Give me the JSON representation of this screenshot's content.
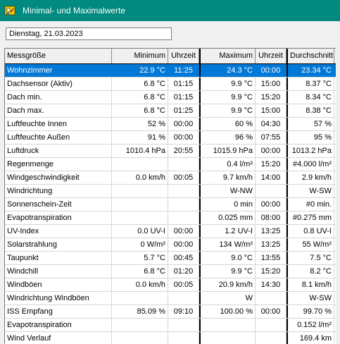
{
  "window": {
    "title": "Minimal- und Maximalwerte",
    "icon": "app-icon"
  },
  "date_field": {
    "value": "Dienstag, 21.03.2023"
  },
  "table": {
    "headers": {
      "name": "Messgröße",
      "min": "Minimum",
      "min_time": "Uhrzeit",
      "max": "Maximum",
      "max_time": "Uhrzeit",
      "avg": "Durchschnitt"
    },
    "selected_row": 0,
    "colors": {
      "selection": "#0078d7",
      "title_bar": "#008a80"
    },
    "rows": [
      {
        "name": "Wohnzimmer",
        "min": "22.9 °C",
        "min_time": "11:25",
        "max": "24.3 °C",
        "max_time": "00:00",
        "avg": "23.34 °C"
      },
      {
        "name": "Dachsensor (Aktiv)",
        "min": "6.8 °C",
        "min_time": "01:15",
        "max": "9.9 °C",
        "max_time": "15:00",
        "avg": "8.37 °C"
      },
      {
        "name": "Dach min.",
        "min": "6.8 °C",
        "min_time": "01:15",
        "max": "9.9 °C",
        "max_time": "15:20",
        "avg": "8.34 °C"
      },
      {
        "name": "Dach max.",
        "min": "6.8 °C",
        "min_time": "01:25",
        "max": "9.9 °C",
        "max_time": "15:00",
        "avg": "8.38 °C"
      },
      {
        "name": "Luftfeuchte Innen",
        "min": "52 %",
        "min_time": "00:00",
        "max": "60 %",
        "max_time": "04:30",
        "avg": "57 %"
      },
      {
        "name": "Luftfeuchte Außen",
        "min": "91 %",
        "min_time": "00:00",
        "max": "96 %",
        "max_time": "07:55",
        "avg": "95 %"
      },
      {
        "name": "Luftdruck",
        "min": "1010.4 hPa",
        "min_time": "20:55",
        "max": "1015.9 hPa",
        "max_time": "00:00",
        "avg": "1013.2 hPa"
      },
      {
        "name": "Regenmenge",
        "min": "",
        "min_time": "",
        "max": "0.4 l/m²",
        "max_time": "15:20",
        "avg": "#4.000 l/m²"
      },
      {
        "name": "Windgeschwindigkeit",
        "min": "0.0 km/h",
        "min_time": "00:05",
        "max": "9.7 km/h",
        "max_time": "14:00",
        "avg": "2.9 km/h"
      },
      {
        "name": "Windrichtung",
        "min": "",
        "min_time": "",
        "max": "W-NW",
        "max_time": "",
        "avg": "W-SW"
      },
      {
        "name": "Sonnenschein-Zeit",
        "min": "",
        "min_time": "",
        "max": "0 min",
        "max_time": "00:00",
        "avg": "#0 min."
      },
      {
        "name": "Evapotranspiration",
        "min": "",
        "min_time": "",
        "max": "0.025 mm",
        "max_time": "08:00",
        "avg": "#0.275 mm"
      },
      {
        "name": "UV-Index",
        "min": "0.0 UV-I",
        "min_time": "00:00",
        "max": "1.2 UV-I",
        "max_time": "13:25",
        "avg": "0.8 UV-I"
      },
      {
        "name": "Solarstrahlung",
        "min": "0 W/m²",
        "min_time": "00:00",
        "max": "134 W/m²",
        "max_time": "13:25",
        "avg": "55 W/m²"
      },
      {
        "name": "Taupunkt",
        "min": "5.7 °C",
        "min_time": "00:45",
        "max": "9.0 °C",
        "max_time": "13:55",
        "avg": "7.5 °C"
      },
      {
        "name": "Windchill",
        "min": "6.8 °C",
        "min_time": "01:20",
        "max": "9.9 °C",
        "max_time": "15:20",
        "avg": "8.2 °C"
      },
      {
        "name": "Windböen",
        "min": "0.0 km/h",
        "min_time": "00:05",
        "max": "20.9 km/h",
        "max_time": "14:30",
        "avg": "8.1 km/h"
      },
      {
        "name": "Windrichtung Windböen",
        "min": "",
        "min_time": "",
        "max": "W",
        "max_time": "",
        "avg": "W-SW"
      },
      {
        "name": "ISS Empfang",
        "min": "85.09 %",
        "min_time": "09:10",
        "max": "100.00 %",
        "max_time": "00:00",
        "avg": "99.70 %"
      },
      {
        "name": "Evapotranspiration",
        "min": "",
        "min_time": "",
        "max": "",
        "max_time": "",
        "avg": "0.152 l/m²"
      },
      {
        "name": "Wind Verlauf",
        "min": "",
        "min_time": "",
        "max": "",
        "max_time": "",
        "avg": "169.4 km"
      }
    ]
  }
}
